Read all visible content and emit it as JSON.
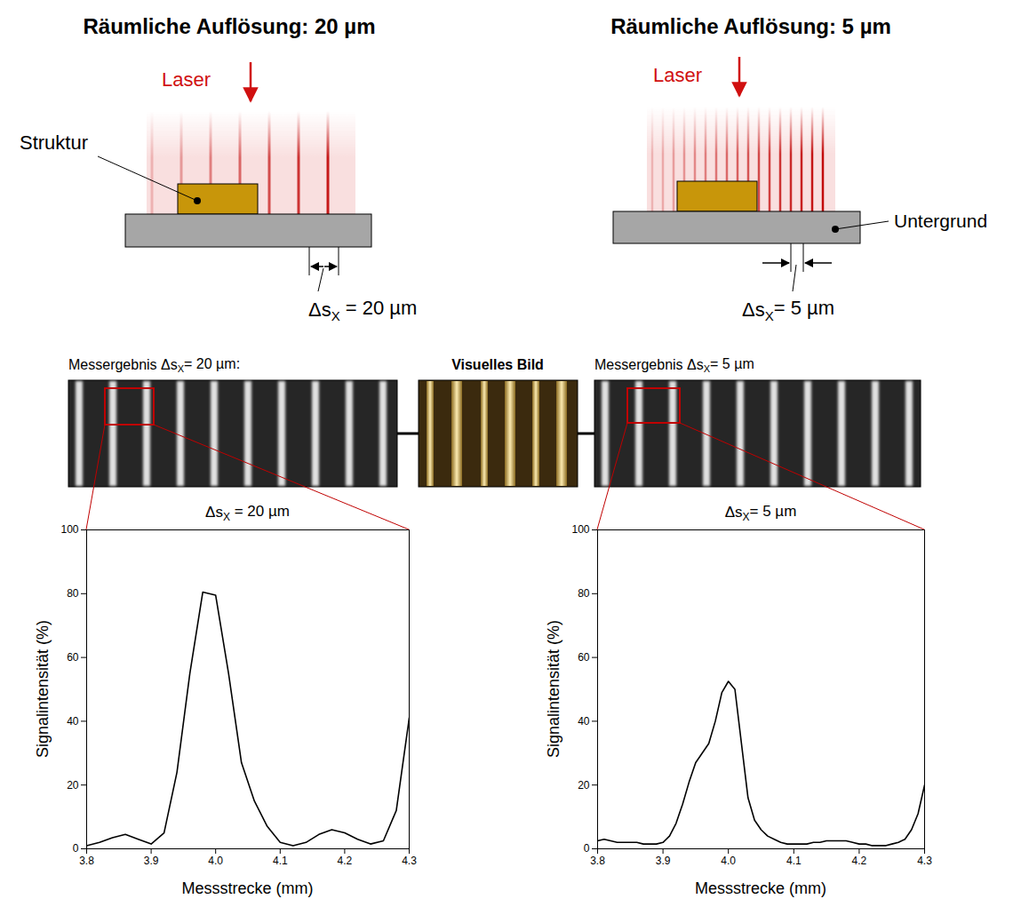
{
  "header": {
    "left_title": "Räumliche Auflösung: 20 µm",
    "right_title": "Räumliche Auflösung: 5 µm"
  },
  "diagram": {
    "laser": "Laser",
    "structure": "Struktur",
    "substrate": "Untergrund",
    "left_dimension": "ΔsX = 20 µm",
    "right_dimension": "ΔsX= 5 µm"
  },
  "images": {
    "left_label": "Messergebnis ΔsX= 20 µm:",
    "center_label": "Visuelles Bild",
    "right_label": "Messergebnis ΔsX= 5 µm"
  },
  "chart_data": [
    {
      "type": "line",
      "title": "ΔsX = 20 µm",
      "x_label": "Messstrecke (mm)",
      "y_label": "Signalintensität (%)",
      "color": "#000000",
      "grid": false,
      "x": [
        3.8,
        3.82,
        3.84,
        3.86,
        3.88,
        3.9,
        3.92,
        3.94,
        3.96,
        3.98,
        4.0,
        4.02,
        4.04,
        4.06,
        4.08,
        4.1,
        4.12,
        4.14,
        4.16,
        4.18,
        4.2,
        4.22,
        4.24,
        4.26,
        4.28,
        4.3
      ],
      "values": [
        1,
        2,
        3.5,
        4.5,
        3,
        1.5,
        5,
        24,
        55,
        80.5,
        79.5,
        55,
        27,
        15,
        7,
        2,
        1,
        2,
        4.5,
        6,
        5,
        3,
        1.5,
        2.5,
        12,
        41
      ],
      "xlim": [
        3.8,
        4.3
      ],
      "xticks": [
        3.8,
        3.9,
        {
          "value": 4,
          "label": "4.0"
        },
        4.1,
        4.2,
        4.3
      ],
      "ylim": [
        0,
        100
      ],
      "yticks": [
        0,
        20,
        40,
        60,
        80,
        100
      ]
    },
    {
      "type": "line",
      "title": "ΔsX= 5 µm",
      "x_label": "Messstrecke (mm)",
      "y_label": "Signalintensität (%)",
      "color": "#000000",
      "grid": false,
      "x": [
        3.8,
        3.81,
        3.82,
        3.83,
        3.84,
        3.85,
        3.86,
        3.87,
        3.88,
        3.89,
        3.9,
        3.91,
        3.92,
        3.93,
        3.94,
        3.95,
        3.96,
        3.97,
        3.98,
        3.99,
        4.0,
        4.01,
        4.02,
        4.03,
        4.04,
        4.05,
        4.06,
        4.07,
        4.08,
        4.09,
        4.1,
        4.11,
        4.12,
        4.13,
        4.14,
        4.15,
        4.16,
        4.17,
        4.18,
        4.19,
        4.2,
        4.21,
        4.22,
        4.23,
        4.24,
        4.25,
        4.26,
        4.27,
        4.28,
        4.29,
        4.3
      ],
      "values": [
        2.5,
        3,
        2.5,
        2,
        2,
        2,
        2,
        1.5,
        1.5,
        1.5,
        2,
        4,
        8,
        14,
        21,
        27,
        30,
        33,
        40,
        49,
        52.5,
        50,
        33,
        16,
        9,
        6,
        4,
        3,
        2,
        1.5,
        1.5,
        1.5,
        1.5,
        2,
        2,
        2.5,
        2.5,
        2.5,
        2.5,
        2,
        1.5,
        1.5,
        1,
        1,
        1,
        1.5,
        2,
        3,
        6,
        11,
        20
      ],
      "xlim": [
        3.8,
        4.3
      ],
      "xticks": [
        3.8,
        3.9,
        {
          "value": 4,
          "label": "4.0"
        },
        4.1,
        4.2,
        4.3
      ],
      "ylim": [
        0,
        100
      ],
      "yticks": [
        0,
        20,
        40,
        60,
        80,
        100
      ]
    }
  ]
}
